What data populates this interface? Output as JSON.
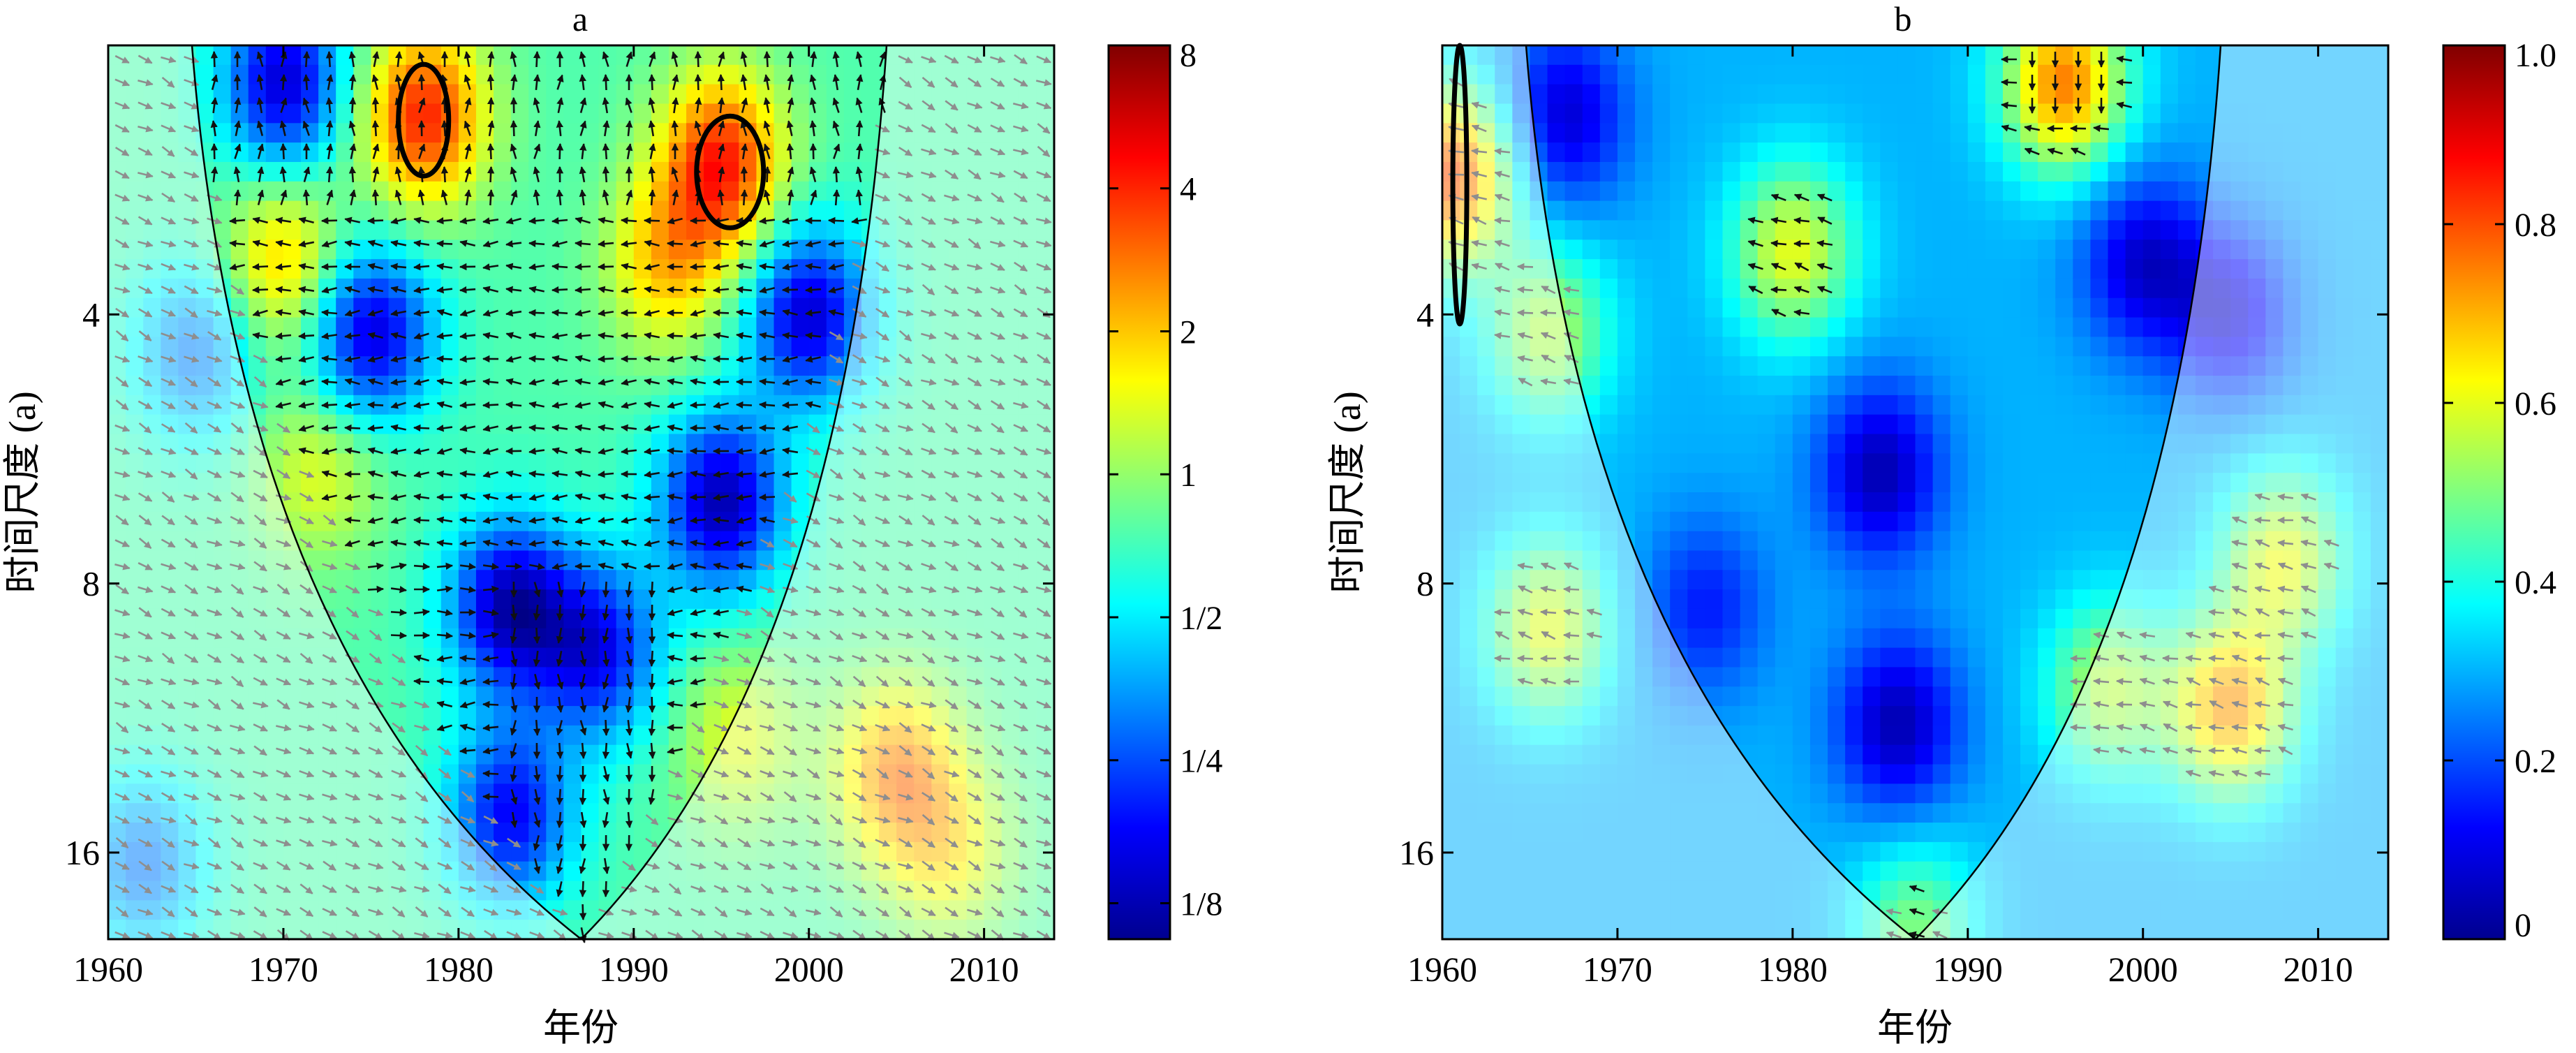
{
  "chart_data": [
    {
      "type": "heatmap",
      "subtype": "cross-wavelet transform",
      "title": "a",
      "xlabel": "年份",
      "ylabel": "时间尺度 (a)",
      "xlim": [
        1960,
        2014
      ],
      "ylim": [
        2,
        20
      ],
      "yscale": "log2",
      "reverse_y": true,
      "xticks": [
        1960,
        1970,
        1980,
        1990,
        2000,
        2010
      ],
      "xtick_labels": [
        "1960",
        "1970",
        "1980",
        "1990",
        "2000",
        "2010"
      ],
      "yticks": [
        4,
        8,
        16
      ],
      "ytick_labels": [
        "4",
        "8",
        "16"
      ],
      "colorbar": {
        "scale": "log2",
        "range": [
          0.105,
          8
        ],
        "colormap": "jet",
        "ticks": [
          0.125,
          0.25,
          0.5,
          1,
          2,
          4,
          8
        ],
        "tick_labels": [
          "1/8",
          "1/4",
          "1/2",
          "1",
          "2",
          "4",
          "8"
        ]
      },
      "cone_of_influence": {
        "min_year": 1987,
        "shape": "parabolic"
      },
      "significance_contours": [
        {
          "year": 1978,
          "period_range": [
            2.1,
            2.8
          ]
        },
        {
          "year": 1995.5,
          "period_range": [
            2.4,
            3.2
          ]
        }
      ],
      "hotspots": [
        {
          "year": 1978,
          "period": 2.4,
          "power": 4
        },
        {
          "year": 1995,
          "period": 2.7,
          "power": 4
        },
        {
          "year": 1970,
          "period": 3.5,
          "power": 2
        },
        {
          "year": 1992,
          "period": 3.5,
          "power": 2
        },
        {
          "year": 1972,
          "period": 6.0,
          "power": 1.4
        },
        {
          "year": 1996,
          "period": 12,
          "power": 1.4
        },
        {
          "year": 2005,
          "period": 13,
          "power": 2.5
        },
        {
          "year": 2008,
          "period": 16,
          "power": 1.5
        }
      ],
      "coldspots": [
        {
          "year": 1983,
          "period": 8.5,
          "power": 0.13
        },
        {
          "year": 1995,
          "period": 6.5,
          "power": 0.13
        },
        {
          "year": 1975,
          "period": 4.2,
          "power": 0.15
        },
        {
          "year": 2000,
          "period": 4.0,
          "power": 0.15
        },
        {
          "year": 1970,
          "period": 2.2,
          "power": 0.15
        },
        {
          "year": 1988,
          "period": 9.5,
          "power": 0.18
        },
        {
          "year": 1983,
          "period": 14.5,
          "power": 0.18
        },
        {
          "year": 1962,
          "period": 16.5,
          "power": 0.3
        },
        {
          "year": 1965,
          "period": 4.4,
          "power": 0.3
        }
      ],
      "background_power": 0.75,
      "phase_arrows_note": "dominant phase: leftward (anti-phase) near 3-8 a; downward near 8-12 a around 1988; rightward near 8 a around 1980"
    },
    {
      "type": "heatmap",
      "subtype": "wavelet coherence",
      "title": "b",
      "xlabel": "年份",
      "ylabel": "时间尺度 (a)",
      "xlim": [
        1960,
        2014
      ],
      "ylim": [
        2,
        20
      ],
      "yscale": "log2",
      "reverse_y": true,
      "xticks": [
        1960,
        1970,
        1980,
        1990,
        2000,
        2010
      ],
      "xtick_labels": [
        "1960",
        "1970",
        "1980",
        "1990",
        "2000",
        "2010"
      ],
      "yticks": [
        4,
        8,
        16
      ],
      "ytick_labels": [
        "4",
        "8",
        "16"
      ],
      "colorbar": {
        "scale": "linear",
        "range": [
          0,
          1.0
        ],
        "colormap": "jet",
        "ticks": [
          0,
          0.2,
          0.4,
          0.6,
          0.8,
          1.0
        ],
        "tick_labels": [
          "0",
          "0.2",
          "0.4",
          "0.6",
          "0.8",
          "1.0"
        ]
      },
      "cone_of_influence": {
        "min_year": 1987,
        "shape": "parabolic"
      },
      "significance_contours": [
        {
          "year": 1961,
          "period_range": [
            2.0,
            4.1
          ]
        }
      ],
      "hotspots": [
        {
          "year": 1960.5,
          "period": 2.8,
          "coherence": 0.8
        },
        {
          "year": 1995.5,
          "period": 2.2,
          "coherence": 0.75
        },
        {
          "year": 1980,
          "period": 3.4,
          "coherence": 0.6
        },
        {
          "year": 1966,
          "period": 4.2,
          "coherence": 0.55
        },
        {
          "year": 1998,
          "period": 10.5,
          "coherence": 0.55
        },
        {
          "year": 2005,
          "period": 11,
          "coherence": 0.72
        },
        {
          "year": 2008,
          "period": 7.5,
          "coherence": 0.6
        },
        {
          "year": 1966,
          "period": 9,
          "coherence": 0.6
        },
        {
          "year": 1987,
          "period": 19.5,
          "coherence": 0.5
        }
      ],
      "coldspots": [
        {
          "year": 1967,
          "period": 2.4,
          "coherence": 0.08
        },
        {
          "year": 1985,
          "period": 6.0,
          "coherence": 0.05
        },
        {
          "year": 1986,
          "period": 11.5,
          "coherence": 0.05
        },
        {
          "year": 2000,
          "period": 3.5,
          "coherence": 0.08
        },
        {
          "year": 2005,
          "period": 4.0,
          "coherence": 0.1
        },
        {
          "year": 1975,
          "period": 8.5,
          "coherence": 0.15
        }
      ],
      "background_coherence": 0.3,
      "phase_arrows_note": "leftward arrows near 4 a (1963-1971) and 1978-1983 at 3-4 a; downward arrows at 2 a near 1995; up-left arrows 1996-1999 near 9-12 a; leftward arrows 2001-2013 at 6-16 a"
    }
  ]
}
